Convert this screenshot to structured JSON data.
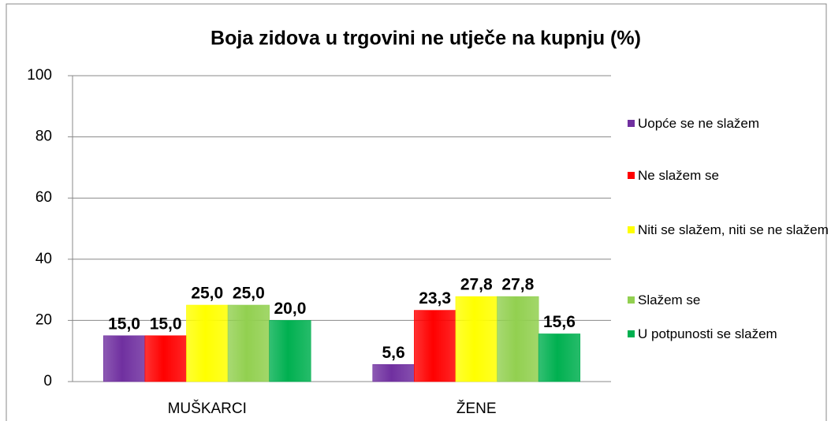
{
  "chart_data": {
    "type": "bar",
    "title": "Boja zidova u trgovini ne utječe na kupnju (%)",
    "categories": [
      "MUŠKARCI",
      "ŽENE"
    ],
    "series": [
      {
        "name": "Uopće se ne slažem",
        "color": "#7030a0",
        "values": [
          15.0,
          5.6
        ],
        "value_labels": [
          "15,0",
          "5,6"
        ]
      },
      {
        "name": "Ne slažem se",
        "color": "#ff0000",
        "values": [
          15.0,
          23.3
        ],
        "value_labels": [
          "15,0",
          "23,3"
        ]
      },
      {
        "name": "Niti se slažem, niti se ne slažem",
        "color": "#ffff00",
        "values": [
          25.0,
          27.8
        ],
        "value_labels": [
          "25,0",
          "27,8"
        ]
      },
      {
        "name": "Slažem se",
        "color": "#92d050",
        "values": [
          25.0,
          27.8
        ],
        "value_labels": [
          "25,0",
          "27,8"
        ]
      },
      {
        "name": "U potpunosti se slažem",
        "color": "#00b050",
        "values": [
          20.0,
          15.6
        ],
        "value_labels": [
          "20,0",
          "15,6"
        ]
      }
    ],
    "ylim": [
      0,
      100
    ],
    "yticks": [
      0,
      20,
      40,
      60,
      80,
      100
    ],
    "grid": true,
    "legend": "right"
  }
}
